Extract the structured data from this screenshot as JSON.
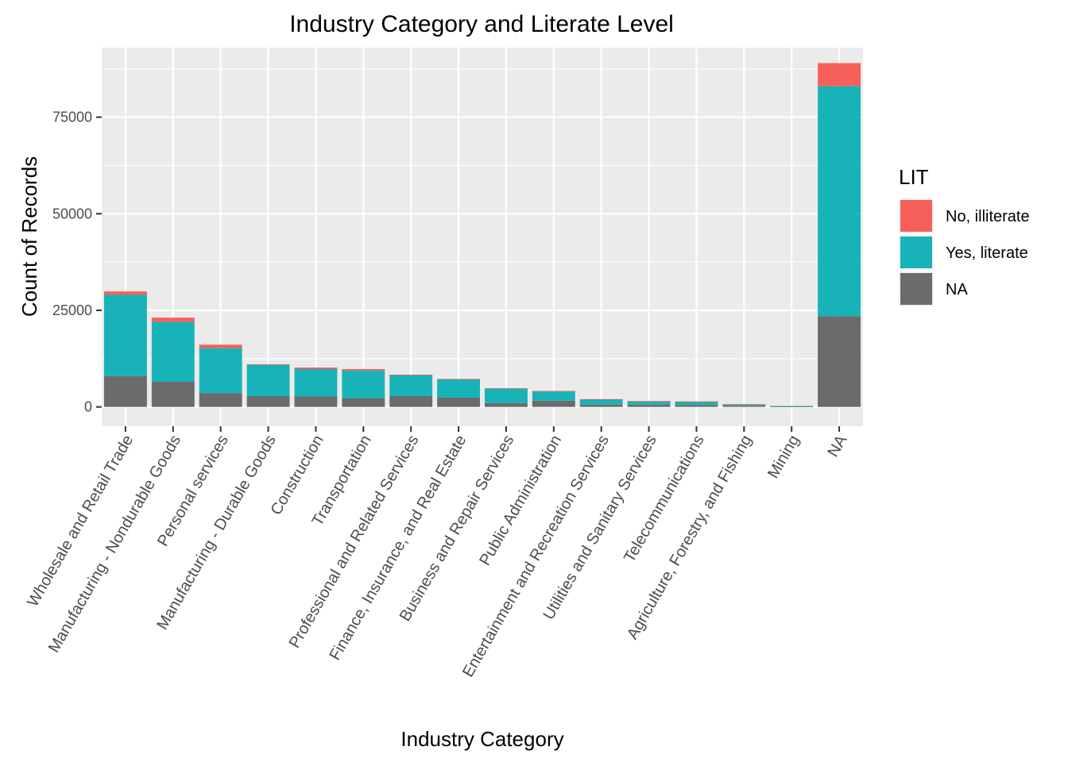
{
  "chart_data": {
    "type": "bar",
    "stacked": true,
    "title": "Industry Category and Literate Level",
    "xlabel": "Industry Category",
    "ylabel": "Count of Records",
    "ylim": [
      -5000,
      93000
    ],
    "yticks": [
      0,
      25000,
      50000,
      75000
    ],
    "ytick_labels": [
      "0",
      "25000",
      "50000",
      "75000"
    ],
    "grid": true,
    "legend_title": "LIT",
    "legend_position": "right",
    "categories": [
      "Wholesale and Retail Trade",
      "Manufacturing - Nondurable Goods",
      "Personal services",
      "Manufacturing - Durable Goods",
      "Construction",
      "Transportation",
      "Professional and Related Services",
      "Finance, Insurance, and Real Estate",
      "Business and Repair Services",
      "Public Administration",
      "Entertainment and Recreation Services",
      "Utilities and Sanitary Services",
      "Telecommunications",
      "Agriculture, Forestry, and Fishing",
      "Mining",
      "NA"
    ],
    "series": [
      {
        "name": "NA",
        "color": "#6b6b6b",
        "values": [
          8000,
          6500,
          3600,
          2800,
          2700,
          2200,
          2800,
          2400,
          1000,
          1600,
          600,
          600,
          500,
          300,
          100,
          23500
        ]
      },
      {
        "name": "Yes, literate",
        "color": "#17b3b8",
        "values": [
          21000,
          15500,
          11600,
          8100,
          7100,
          7200,
          5500,
          4800,
          3800,
          2500,
          1400,
          900,
          900,
          400,
          150,
          59500
        ]
      },
      {
        "name": "No, illiterate",
        "color": "#f5605a",
        "values": [
          900,
          1100,
          900,
          150,
          400,
          400,
          50,
          50,
          30,
          30,
          20,
          20,
          20,
          10,
          0,
          6000
        ]
      }
    ],
    "legend_order": [
      "No, illiterate",
      "Yes, literate",
      "NA"
    ]
  }
}
